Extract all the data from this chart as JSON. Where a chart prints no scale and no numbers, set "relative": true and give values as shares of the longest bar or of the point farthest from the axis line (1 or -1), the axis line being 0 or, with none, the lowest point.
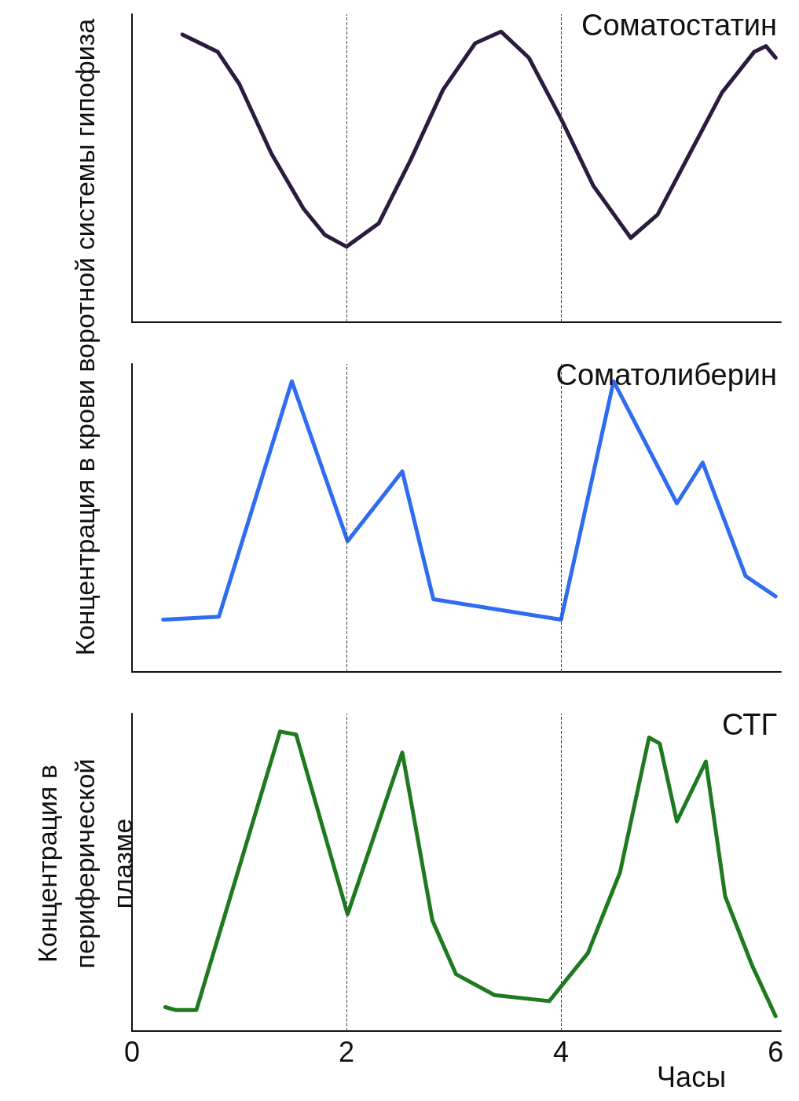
{
  "chart_data": [
    {
      "type": "line",
      "title": "Соматостатин",
      "ylabel": "Концентрация в крови воротной системы гипофиза",
      "relative": true,
      "xlim": [
        0,
        6.05
      ],
      "xticks": [
        0,
        2,
        4,
        6
      ],
      "tick_labels": false,
      "grid": false,
      "marker": "none",
      "line_style": "solid",
      "series": [
        {
          "color": "#2b1b3f",
          "x": [
            0.47,
            0.8,
            1.0,
            1.3,
            1.6,
            1.8,
            2.0,
            2.3,
            2.6,
            2.9,
            3.2,
            3.44,
            3.7,
            4.0,
            4.3,
            4.65,
            4.9,
            5.2,
            5.5,
            5.8,
            5.91,
            6.0
          ],
          "values": [
            0.99,
            0.93,
            0.82,
            0.58,
            0.39,
            0.3,
            0.26,
            0.34,
            0.56,
            0.8,
            0.96,
            1.0,
            0.91,
            0.7,
            0.47,
            0.29,
            0.37,
            0.58,
            0.79,
            0.93,
            0.95,
            0.91
          ]
        }
      ],
      "ref_lines": [
        {
          "axis": "x",
          "value": 2,
          "color": "#444444",
          "line_style": "dashed"
        },
        {
          "axis": "x",
          "value": 4,
          "color": "#444444",
          "line_style": "dashed"
        }
      ]
    },
    {
      "type": "line",
      "title": "Соматолиберин",
      "relative": true,
      "xlim": [
        0,
        6.05
      ],
      "xticks": [
        0,
        2,
        4,
        6
      ],
      "tick_labels": false,
      "grid": false,
      "marker": "none",
      "line_style": "solid",
      "series": [
        {
          "color": "#2f6cf0",
          "x": [
            0.29,
            0.81,
            1.49,
            2.01,
            2.52,
            2.81,
            4.0,
            4.49,
            5.08,
            5.32,
            5.72,
            6.0
          ],
          "values": [
            0.18,
            0.19,
            1.0,
            0.45,
            0.69,
            0.25,
            0.18,
            1.0,
            0.58,
            0.72,
            0.33,
            0.26
          ]
        }
      ],
      "ref_lines": [
        {
          "axis": "x",
          "value": 2,
          "color": "#444444",
          "line_style": "dashed"
        },
        {
          "axis": "x",
          "value": 4,
          "color": "#444444",
          "line_style": "dashed"
        }
      ]
    },
    {
      "type": "line",
      "title": "СТГ",
      "xlabel": "Часы",
      "ylabel": "Концентрация в периферической плазме",
      "relative": true,
      "xlim": [
        0,
        6.05
      ],
      "xticks": [
        0,
        2,
        4,
        6
      ],
      "tick_labels": "x",
      "grid": false,
      "marker": "none",
      "line_style": "solid",
      "series": [
        {
          "color": "#1f7a1f",
          "x": [
            0.31,
            0.41,
            0.6,
            1.38,
            1.53,
            2.01,
            2.52,
            2.8,
            3.02,
            3.38,
            3.89,
            4.25,
            4.55,
            4.82,
            4.92,
            5.08,
            5.35,
            5.53,
            5.78,
            6.0
          ],
          "values": [
            0.08,
            0.07,
            0.07,
            1.0,
            0.99,
            0.39,
            0.93,
            0.37,
            0.19,
            0.12,
            0.1,
            0.26,
            0.53,
            0.98,
            0.96,
            0.7,
            0.9,
            0.45,
            0.22,
            0.05
          ]
        }
      ],
      "ref_lines": [
        {
          "axis": "x",
          "value": 2,
          "color": "#444444",
          "line_style": "dashed"
        },
        {
          "axis": "x",
          "value": 4,
          "color": "#444444",
          "line_style": "dashed"
        }
      ]
    }
  ]
}
